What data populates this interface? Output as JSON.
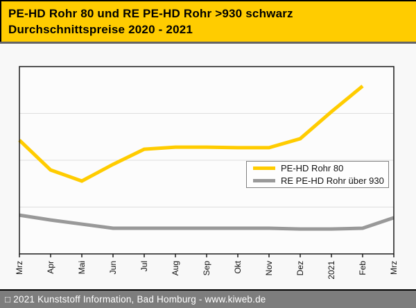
{
  "header": {
    "title_line1": "PE-HD Rohr 80 und RE PE-HD Rohr >930 schwarz",
    "title_line2": "Durchschnittspreise 2020 - 2021"
  },
  "footer": {
    "copyright": "□ 2021 Kunststoff Information, Bad Homburg - www.kiweb.de"
  },
  "colors": {
    "header_yellow": "#FFCC00",
    "header_shadow": "#646464",
    "body_bg": "#F8F8F8",
    "plot_bg": "#FCFCFC",
    "gridline": "#DEDEDE",
    "axis": "#1A1A1A",
    "footer_bg": "#7D7D7D",
    "legend_border": "#7F7F7F"
  },
  "chart_data": {
    "type": "line",
    "title": "PE-HD Rohr 80 und RE PE-HD Rohr >930 schwarz Durchschnittspreise 2020 - 2021",
    "categories": [
      "Mrz",
      "Apr",
      "Mai",
      "Jun",
      "Jul",
      "Aug",
      "Sep",
      "Okt",
      "Nov",
      "Dez",
      "2021",
      "Feb",
      "Mrz"
    ],
    "x_axis_note": "month labels rotated 90°, Mrz 2020 through Mrz 2021",
    "y_axis": "unlabeled — no tick values shown in source chart",
    "values_unit": "percent of plot height from bottom (estimated from pixels)",
    "gridlines_pct": [
      25,
      50,
      75
    ],
    "grid": "horizontal only",
    "legend_position": "inside right-center",
    "series": [
      {
        "name": "PE-HD Rohr 80",
        "color": "#FFCC00",
        "values": [
          60.7,
          44.8,
          38.9,
          47.8,
          55.9,
          57.0,
          57.0,
          56.7,
          56.7,
          61.5,
          75.9,
          89.6,
          null
        ]
      },
      {
        "name": "RE PE-HD Rohr über 930",
        "color": "#999999",
        "values": [
          20.7,
          18.1,
          15.9,
          13.7,
          13.7,
          13.7,
          13.7,
          13.7,
          13.7,
          13.3,
          13.3,
          13.7,
          19.3
        ]
      }
    ]
  }
}
